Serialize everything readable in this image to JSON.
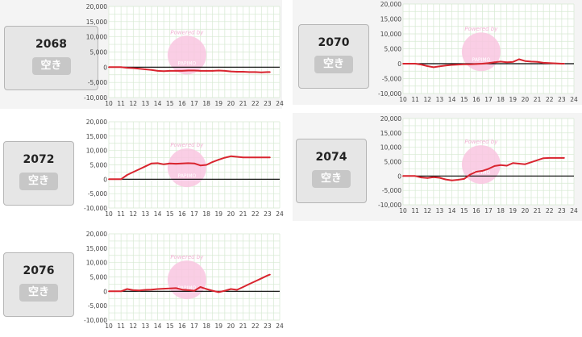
{
  "colors": {
    "line": "#d9252f",
    "grid": "#d6e9d2",
    "zero": "#000000",
    "watermark": "#f9c6e1",
    "card_bg": "#e6e6e6",
    "badge_bg": "#c7c7c7"
  },
  "axis": {
    "y_ticks": [
      "20,000",
      "15,000",
      "10,000",
      "5,000",
      "0",
      "-5,000",
      "-10,000"
    ],
    "y_values": [
      20000,
      15000,
      10000,
      5000,
      0,
      -5000,
      -10000
    ],
    "x_ticks": [
      "10",
      "11",
      "12",
      "13",
      "14",
      "15",
      "16",
      "17",
      "18",
      "19",
      "20",
      "21",
      "22",
      "23",
      "24"
    ],
    "ylim": [
      -10000,
      20000
    ],
    "xlim": [
      10,
      24
    ]
  },
  "watermark": {
    "text": "Powered by",
    "sub": "PAPIMO",
    "icon": "pink-circle-logo"
  },
  "machines": [
    {
      "number": "2068",
      "status": "空き",
      "chart_data": {
        "type": "line",
        "x": [
          10,
          11,
          11.5,
          12,
          12.5,
          13,
          13.5,
          14,
          14.5,
          15,
          15.5,
          16,
          16.5,
          17,
          17.5,
          18,
          18.5,
          19,
          19.5,
          20,
          20.5,
          21,
          21.5,
          22,
          22.5,
          23,
          23.2
        ],
        "y": [
          0,
          0,
          -200,
          -300,
          -500,
          -700,
          -900,
          -1200,
          -1300,
          -1200,
          -1200,
          -1200,
          -1100,
          -1100,
          -1200,
          -1200,
          -1200,
          -1100,
          -1200,
          -1400,
          -1500,
          -1500,
          -1600,
          -1600,
          -1700,
          -1600,
          -1600
        ]
      }
    },
    {
      "number": "2070",
      "status": "空き",
      "chart_data": {
        "type": "line",
        "x": [
          10,
          11,
          11.5,
          12,
          12.5,
          13,
          13.5,
          14,
          14.5,
          15,
          15.5,
          16,
          16.5,
          17,
          17.5,
          18,
          18.5,
          19,
          19.5,
          20,
          20.5,
          21,
          21.5,
          22,
          22.5,
          23,
          23.2
        ],
        "y": [
          0,
          0,
          -300,
          -800,
          -1200,
          -900,
          -600,
          -400,
          -300,
          -200,
          -200,
          -100,
          0,
          200,
          500,
          700,
          500,
          600,
          1500,
          900,
          700,
          600,
          300,
          200,
          100,
          0,
          0
        ]
      }
    },
    {
      "number": "2072",
      "status": "空き",
      "chart_data": {
        "type": "line",
        "x": [
          10,
          11,
          11.5,
          12,
          12.5,
          13,
          13.5,
          14,
          14.5,
          15,
          15.5,
          16,
          16.5,
          17,
          17.5,
          18,
          18.5,
          19,
          19.5,
          20,
          20.5,
          21,
          21.5,
          22,
          22.5,
          23,
          23.2
        ],
        "y": [
          0,
          0,
          1500,
          2500,
          3500,
          4500,
          5500,
          5600,
          5200,
          5500,
          5400,
          5500,
          5600,
          5500,
          4800,
          5000,
          6000,
          6800,
          7500,
          8000,
          7800,
          7600,
          7600,
          7600,
          7600,
          7600,
          7600
        ]
      }
    },
    {
      "number": "2074",
      "status": "空き",
      "chart_data": {
        "type": "line",
        "x": [
          10,
          11,
          11.5,
          12,
          12.5,
          13,
          13.5,
          14,
          14.5,
          15,
          15.5,
          16,
          16.5,
          17,
          17.5,
          18,
          18.5,
          19,
          19.5,
          20,
          20.5,
          21,
          21.5,
          22,
          22.5,
          23,
          23.2
        ],
        "y": [
          0,
          0,
          -500,
          -700,
          -400,
          -600,
          -1200,
          -1500,
          -1300,
          -1000,
          500,
          1500,
          1800,
          2500,
          3500,
          3800,
          3600,
          4500,
          4300,
          4100,
          4800,
          5500,
          6200,
          6300,
          6300,
          6300,
          6300
        ]
      }
    },
    {
      "number": "2076",
      "status": "空き",
      "chart_data": {
        "type": "line",
        "x": [
          10,
          11,
          11.5,
          12,
          12.5,
          13,
          13.5,
          14,
          14.5,
          15,
          15.5,
          16,
          16.5,
          17,
          17.5,
          18,
          18.5,
          19,
          19.5,
          20,
          20.5,
          21,
          21.5,
          22,
          22.5,
          23,
          23.2
        ],
        "y": [
          0,
          0,
          800,
          400,
          300,
          500,
          600,
          800,
          900,
          1000,
          1100,
          600,
          400,
          200,
          1500,
          800,
          200,
          -300,
          200,
          800,
          500,
          1500,
          2500,
          3500,
          4500,
          5500,
          5800
        ]
      }
    }
  ]
}
